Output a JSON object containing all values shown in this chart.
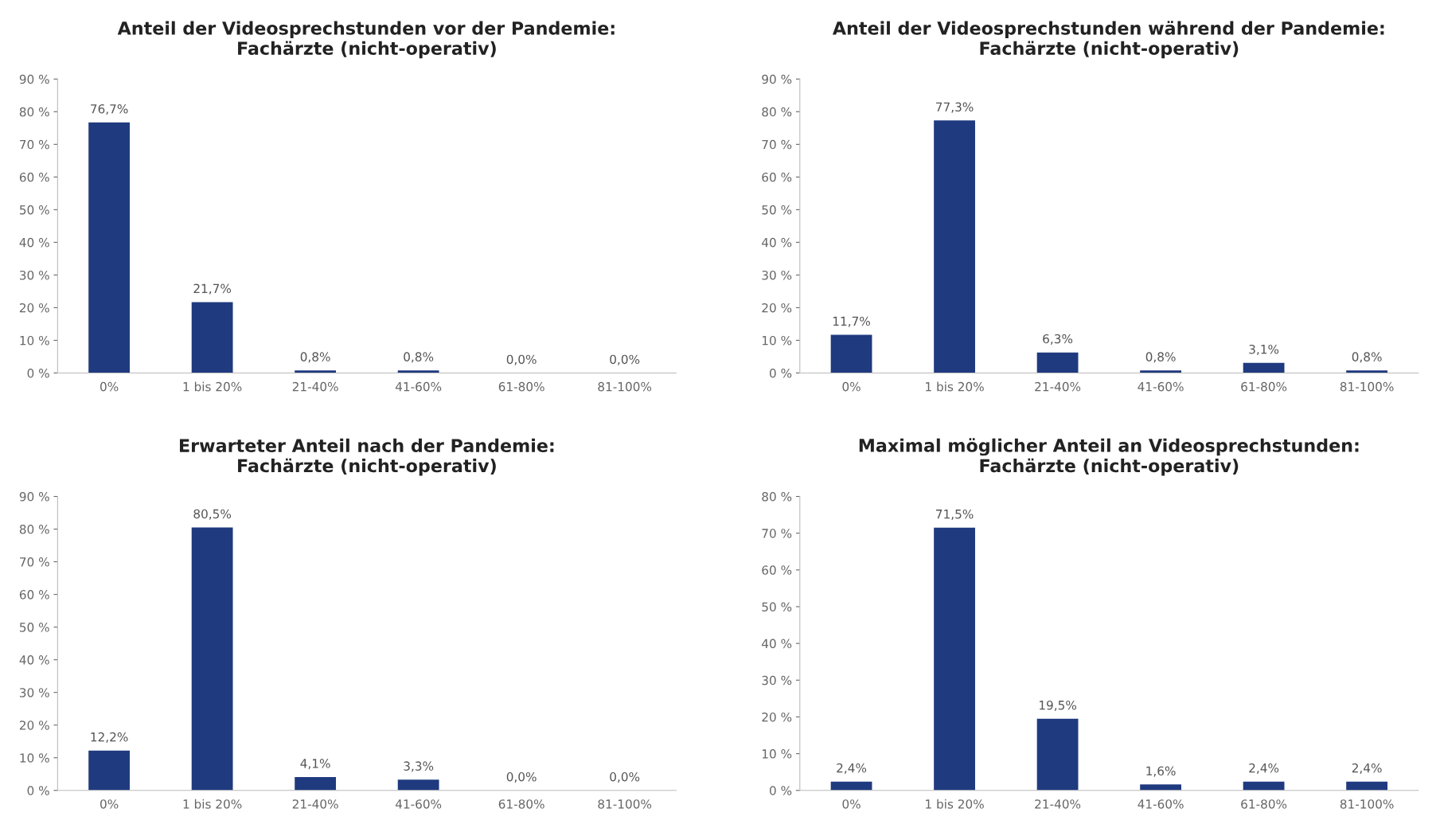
{
  "chart_data": [
    {
      "type": "bar",
      "title": "Anteil der Videosprechstunden vor der Pandemie:\nFachärzte (nicht-operativ)",
      "categories": [
        "0%",
        "1 bis 20%",
        "21-40%",
        "41-60%",
        "61-80%",
        "81-100%"
      ],
      "values": [
        76.7,
        21.7,
        0.8,
        0.8,
        0.0,
        0.0
      ],
      "value_labels": [
        "76,7%",
        "21,7%",
        "0,8%",
        "0,8%",
        "0,0%",
        "0,0%"
      ],
      "color": "#1f3a7f",
      "ylim": [
        0,
        90
      ],
      "yticks": [
        {
          "value": 0,
          "label": "0 %"
        },
        {
          "value": 10,
          "label": "10 %"
        },
        {
          "value": 20,
          "label": "20 %"
        },
        {
          "value": 30,
          "label": "30 %"
        },
        {
          "value": 40,
          "label": "40 %"
        },
        {
          "value": 50,
          "label": "50 %"
        },
        {
          "value": 60,
          "label": "60 %"
        },
        {
          "value": 70,
          "label": "70 %"
        },
        {
          "value": 80,
          "label": "80 %"
        },
        {
          "value": 90,
          "label": "90 %"
        }
      ],
      "grid": false,
      "legend": false
    },
    {
      "type": "bar",
      "title": "Anteil der Videosprechstunden während der Pandemie:\nFachärzte (nicht-operativ)",
      "categories": [
        "0%",
        "1 bis 20%",
        "21-40%",
        "41-60%",
        "61-80%",
        "81-100%"
      ],
      "values": [
        11.7,
        77.3,
        6.3,
        0.8,
        3.1,
        0.8
      ],
      "value_labels": [
        "11,7%",
        "77,3%",
        "6,3%",
        "0,8%",
        "3,1%",
        "0,8%"
      ],
      "color": "#1f3a7f",
      "ylim": [
        0,
        90
      ],
      "yticks": [
        {
          "value": 0,
          "label": "0 %"
        },
        {
          "value": 10,
          "label": "10 %"
        },
        {
          "value": 20,
          "label": "20 %"
        },
        {
          "value": 30,
          "label": "30 %"
        },
        {
          "value": 40,
          "label": "40 %"
        },
        {
          "value": 50,
          "label": "50 %"
        },
        {
          "value": 60,
          "label": "60 %"
        },
        {
          "value": 70,
          "label": "70 %"
        },
        {
          "value": 80,
          "label": "80 %"
        },
        {
          "value": 90,
          "label": "90 %"
        }
      ],
      "grid": false,
      "legend": false
    },
    {
      "type": "bar",
      "title": "Erwarteter Anteil nach der Pandemie:\nFachärzte (nicht-operativ)",
      "categories": [
        "0%",
        "1 bis 20%",
        "21-40%",
        "41-60%",
        "61-80%",
        "81-100%"
      ],
      "values": [
        12.2,
        80.5,
        4.1,
        3.3,
        0.0,
        0.0
      ],
      "value_labels": [
        "12,2%",
        "80,5%",
        "4,1%",
        "3,3%",
        "0,0%",
        "0,0%"
      ],
      "color": "#1f3a7f",
      "ylim": [
        0,
        90
      ],
      "yticks": [
        {
          "value": 0,
          "label": "0 %"
        },
        {
          "value": 10,
          "label": "10 %"
        },
        {
          "value": 20,
          "label": "20 %"
        },
        {
          "value": 30,
          "label": "30 %"
        },
        {
          "value": 40,
          "label": "40 %"
        },
        {
          "value": 50,
          "label": "50 %"
        },
        {
          "value": 60,
          "label": "60 %"
        },
        {
          "value": 70,
          "label": "70 %"
        },
        {
          "value": 80,
          "label": "80 %"
        },
        {
          "value": 90,
          "label": "90 %"
        }
      ],
      "grid": false,
      "legend": false
    },
    {
      "type": "bar",
      "title": "Maximal möglicher Anteil an Videosprechstunden:\nFachärzte (nicht-operativ)",
      "categories": [
        "0%",
        "1 bis 20%",
        "21-40%",
        "41-60%",
        "61-80%",
        "81-100%"
      ],
      "values": [
        2.4,
        71.5,
        19.5,
        1.6,
        2.4,
        2.4
      ],
      "value_labels": [
        "2,4%",
        "71,5%",
        "19,5%",
        "1,6%",
        "2,4%",
        "2,4%"
      ],
      "color": "#1f3a7f",
      "ylim": [
        0,
        80
      ],
      "yticks": [
        {
          "value": 0,
          "label": "0 %"
        },
        {
          "value": 10,
          "label": "10 %"
        },
        {
          "value": 20,
          "label": "20 %"
        },
        {
          "value": 30,
          "label": "30 %"
        },
        {
          "value": 40,
          "label": "40 %"
        },
        {
          "value": 50,
          "label": "50 %"
        },
        {
          "value": 60,
          "label": "60 %"
        },
        {
          "value": 70,
          "label": "70 %"
        },
        {
          "value": 80,
          "label": "80 %"
        }
      ],
      "grid": false,
      "legend": false
    }
  ]
}
